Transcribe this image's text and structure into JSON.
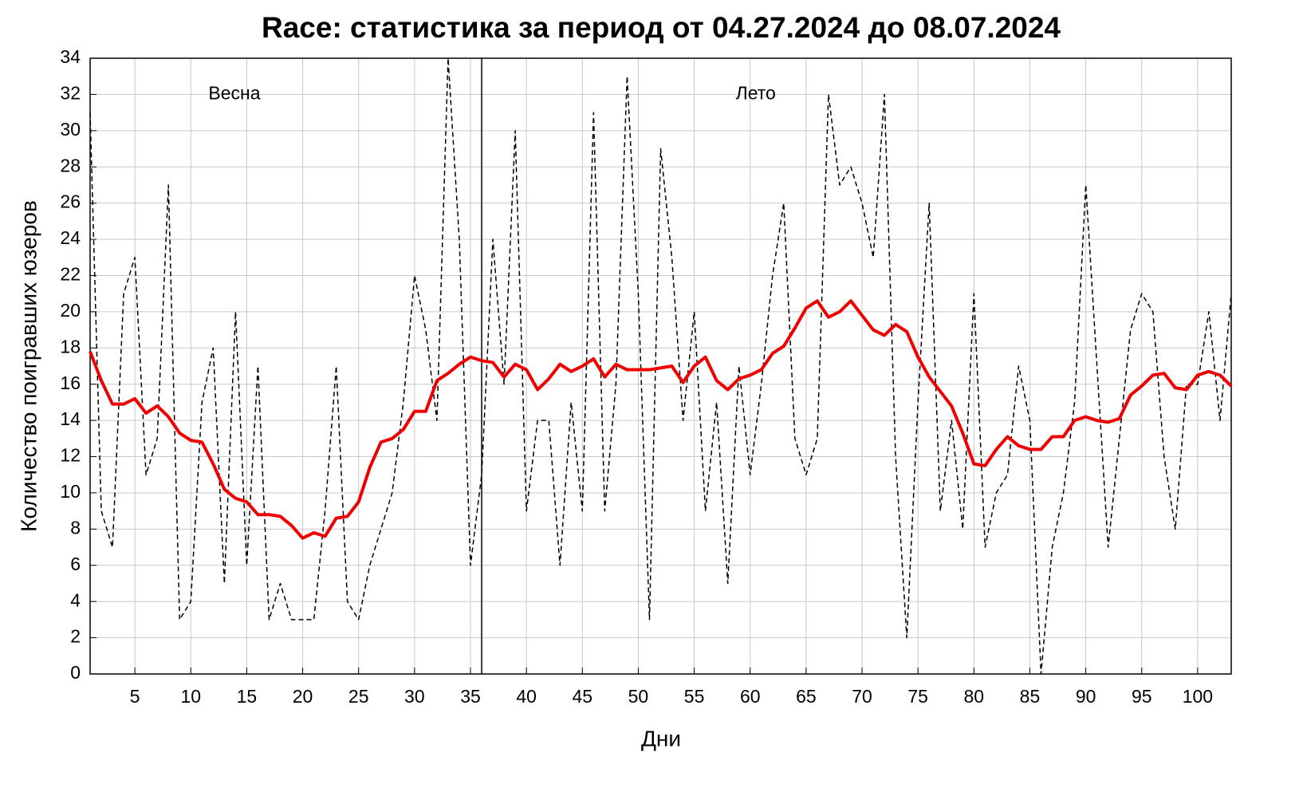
{
  "chart_data": {
    "type": "line",
    "title": "Race: статистика за период от 04.27.2024 до 08.07.2024",
    "x_label": "Дни",
    "y_label": "Количество поигравших юзеров",
    "x": [
      1,
      2,
      3,
      4,
      5,
      6,
      7,
      8,
      9,
      10,
      11,
      12,
      13,
      14,
      15,
      16,
      17,
      18,
      19,
      20,
      21,
      22,
      23,
      24,
      25,
      26,
      27,
      28,
      29,
      30,
      31,
      32,
      33,
      34,
      35,
      36,
      37,
      38,
      39,
      40,
      41,
      42,
      43,
      44,
      45,
      46,
      47,
      48,
      49,
      50,
      51,
      52,
      53,
      54,
      55,
      56,
      57,
      58,
      59,
      60,
      61,
      62,
      63,
      64,
      65,
      66,
      67,
      68,
      69,
      70,
      71,
      72,
      73,
      74,
      75,
      76,
      77,
      78,
      79,
      80,
      81,
      82,
      83,
      84,
      85,
      86,
      87,
      88,
      89,
      90,
      91,
      92,
      93,
      94,
      95,
      96,
      97,
      98,
      99,
      100,
      101,
      102,
      103
    ],
    "series": [
      {
        "color": "#000000",
        "style": "dashed",
        "width": 1.5,
        "values": [
          31,
          9,
          7,
          21,
          23,
          11,
          13,
          27,
          3,
          4,
          15,
          18,
          5,
          20,
          6,
          17,
          3,
          5,
          3,
          3,
          3,
          9,
          17,
          4,
          3,
          6,
          8,
          10,
          15,
          22,
          19,
          14,
          34,
          24,
          6,
          11,
          24,
          16,
          30,
          9,
          14,
          14,
          6,
          15,
          9,
          31,
          9,
          16,
          33,
          21,
          3,
          29,
          23,
          14,
          20,
          9,
          15,
          5,
          17,
          11,
          16,
          22,
          26,
          13,
          11,
          13,
          32,
          27,
          28,
          26,
          23,
          32,
          12,
          2,
          15,
          26,
          9,
          14,
          8,
          21,
          7,
          10,
          11,
          17,
          14,
          0,
          7,
          10,
          15,
          27,
          17,
          7,
          13,
          19,
          21,
          20,
          12,
          8,
          16,
          16,
          20,
          14,
          21
        ]
      },
      {
        "color": "#ee0000",
        "style": "solid",
        "width": 4,
        "values": [
          17.8,
          16.2,
          14.9,
          14.9,
          15.2,
          14.4,
          14.8,
          14.2,
          13.3,
          12.9,
          12.8,
          11.6,
          10.2,
          9.7,
          9.5,
          8.8,
          8.8,
          8.7,
          8.2,
          7.5,
          7.8,
          7.6,
          8.6,
          8.7,
          9.5,
          11.4,
          12.8,
          13,
          13.5,
          14.5,
          14.5,
          16.2,
          16.6,
          17.1,
          17.5,
          17.3,
          17.2,
          16.4,
          17.1,
          16.8,
          15.7,
          16.3,
          17.1,
          16.7,
          17,
          17.4,
          16.4,
          17.1,
          16.8,
          16.8,
          16.8,
          16.9,
          17,
          16.1,
          17,
          17.5,
          16.2,
          15.7,
          16.3,
          16.5,
          16.8,
          17.7,
          18.1,
          19.1,
          20.2,
          20.6,
          19.7,
          20,
          20.6,
          19.8,
          19,
          18.7,
          19.3,
          18.9,
          17.5,
          16.4,
          15.6,
          14.8,
          13.3,
          11.6,
          11.5,
          12.4,
          13.1,
          12.6,
          12.4,
          12.4,
          13.1,
          13.1,
          14,
          14.2,
          14,
          13.9,
          14.1,
          15.4,
          15.9,
          16.5,
          16.6,
          15.8,
          15.7,
          16.5,
          16.7,
          16.5,
          15.9
        ]
      }
    ],
    "xlim": [
      1,
      103
    ],
    "ylim": [
      0,
      34
    ],
    "xticks": [
      5,
      10,
      15,
      20,
      25,
      30,
      35,
      40,
      45,
      50,
      55,
      60,
      65,
      70,
      75,
      80,
      85,
      90,
      95,
      100
    ],
    "yticks": [
      0,
      2,
      4,
      6,
      8,
      10,
      12,
      14,
      16,
      18,
      20,
      22,
      24,
      26,
      28,
      30,
      32,
      34
    ],
    "grid": true,
    "vlines": [
      36
    ],
    "annotations": [
      {
        "text": "Весна",
        "x": 13.9,
        "y": 32
      },
      {
        "text": "Лето",
        "x": 60.5,
        "y": 32
      }
    ]
  }
}
